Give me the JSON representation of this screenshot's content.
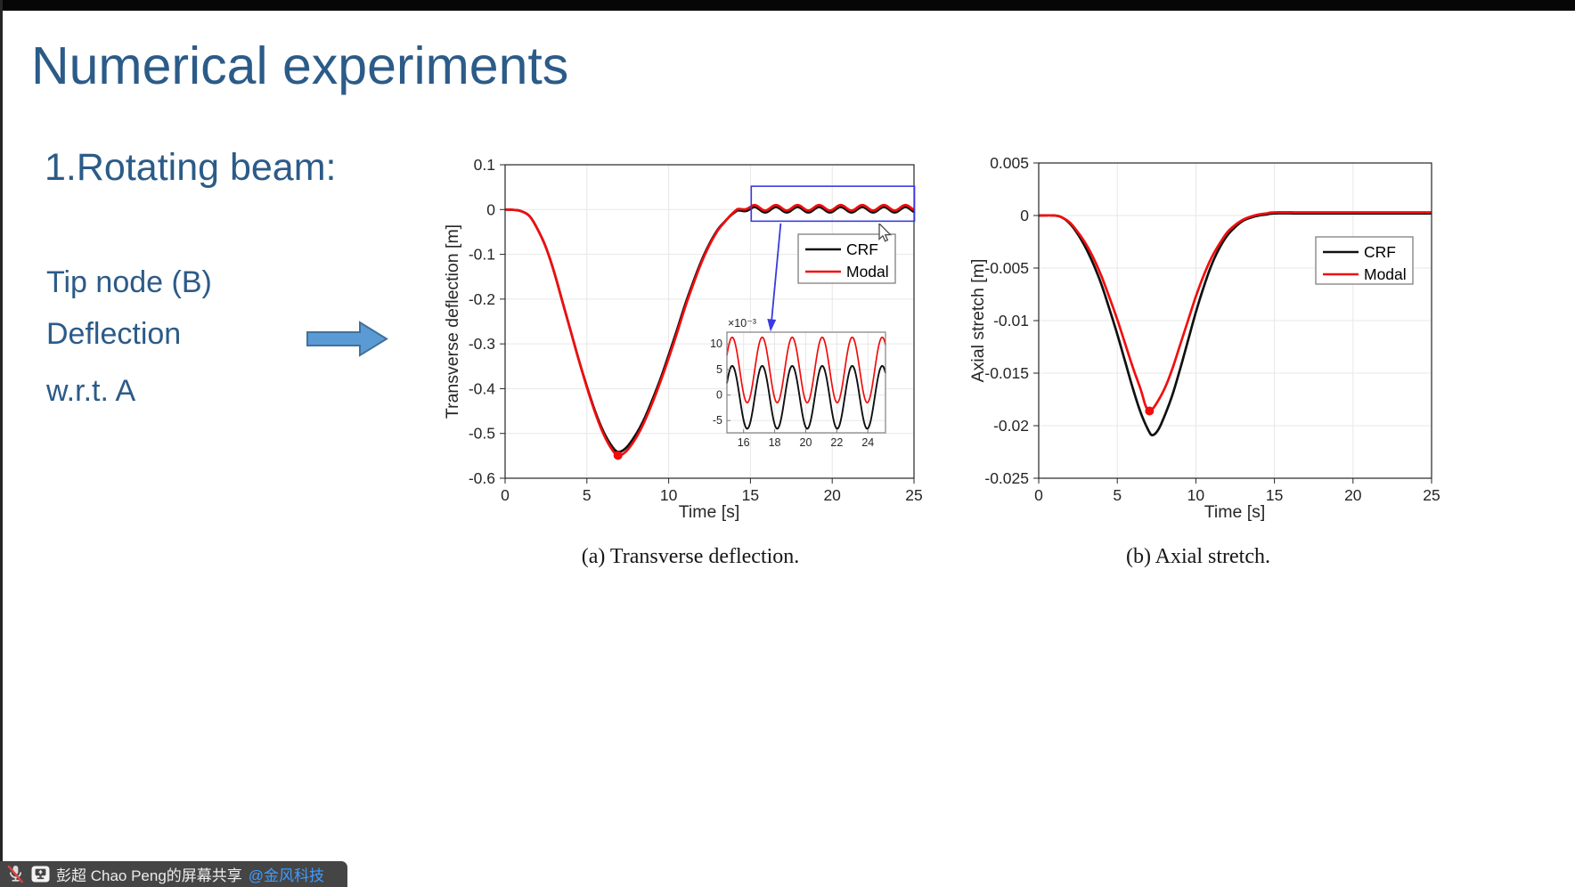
{
  "slide": {
    "title": "Numerical experiments",
    "heading": "1.Rotating beam:",
    "notes": [
      "Tip node (B)",
      "Deflection",
      "w.r.t. A"
    ],
    "text_color": "#2b5b88",
    "arrow_fill": "#5b9bd5",
    "arrow_stroke": "#41719c"
  },
  "captions": {
    "a": "(a) Transverse deflection.",
    "b": "(b) Axial stretch."
  },
  "share_bar": {
    "text": "彭超 Chao Peng的屏幕共享 ",
    "link": "@金风科技",
    "background": "#454545",
    "link_color": "#3f9bff",
    "icons": [
      "microphone-muted",
      "screen-share"
    ]
  },
  "colors": {
    "crf_line": "#101010",
    "modal_line": "#f20d0d",
    "grid": "#e7e7e7",
    "axis": "#262626",
    "annotation_blue": "#3a3ae0",
    "legend_border": "#7f7f7f"
  },
  "chart_data": [
    {
      "id": "transverse-deflection",
      "type": "line",
      "xlabel": "Time [s]",
      "ylabel": "Transverse deflection [m]",
      "xlim": [
        0,
        25
      ],
      "ylim": [
        -0.6,
        0.1
      ],
      "x_tick_labels": [
        "0",
        "5",
        "10",
        "15",
        "20",
        "25"
      ],
      "y_tick_labels": [
        "0.1",
        "0",
        "-0.1",
        "-0.2",
        "-0.3",
        "-0.4",
        "-0.5",
        "-0.6"
      ],
      "grid": true,
      "legend_position": "upper-right-inside",
      "series": [
        {
          "name": "CRF",
          "color": "#101010",
          "width": 2.7,
          "keypoints": [
            [
              0,
              0
            ],
            [
              0.6,
              -0.001
            ],
            [
              1,
              -0.004
            ],
            [
              1.5,
              -0.015
            ],
            [
              2,
              -0.045
            ],
            [
              2.5,
              -0.085
            ],
            [
              3,
              -0.14
            ],
            [
              3.5,
              -0.205
            ],
            [
              4,
              -0.27
            ],
            [
              4.5,
              -0.335
            ],
            [
              5,
              -0.395
            ],
            [
              5.5,
              -0.45
            ],
            [
              6,
              -0.495
            ],
            [
              6.5,
              -0.527
            ],
            [
              6.9,
              -0.541
            ],
            [
              7.4,
              -0.532
            ],
            [
              8,
              -0.502
            ],
            [
              8.5,
              -0.468
            ],
            [
              9,
              -0.425
            ],
            [
              9.5,
              -0.378
            ],
            [
              10,
              -0.325
            ],
            [
              10.5,
              -0.27
            ],
            [
              11,
              -0.213
            ],
            [
              11.5,
              -0.162
            ],
            [
              12,
              -0.115
            ],
            [
              12.5,
              -0.076
            ],
            [
              13,
              -0.045
            ],
            [
              13.4,
              -0.028
            ],
            [
              13.8,
              -0.013
            ],
            [
              14.2,
              -0.002
            ]
          ],
          "oscillation": {
            "start": 14.2,
            "end": 25,
            "mean": -0.0005,
            "amplitude": 0.006,
            "period": 1.32,
            "peak_t": 16.56
          }
        },
        {
          "name": "Modal",
          "color": "#f20d0d",
          "width": 2.7,
          "keypoints": [
            [
              0,
              0
            ],
            [
              0.6,
              -0.001
            ],
            [
              1,
              -0.004
            ],
            [
              1.5,
              -0.015
            ],
            [
              2,
              -0.045
            ],
            [
              2.5,
              -0.085
            ],
            [
              3,
              -0.14
            ],
            [
              3.5,
              -0.205
            ],
            [
              4,
              -0.27
            ],
            [
              4.5,
              -0.335
            ],
            [
              5,
              -0.397
            ],
            [
              5.5,
              -0.453
            ],
            [
              6,
              -0.5
            ],
            [
              6.5,
              -0.534
            ],
            [
              6.9,
              -0.549
            ],
            [
              7.4,
              -0.54
            ],
            [
              8,
              -0.51
            ],
            [
              8.5,
              -0.475
            ],
            [
              9,
              -0.432
            ],
            [
              9.5,
              -0.384
            ],
            [
              10,
              -0.332
            ],
            [
              10.5,
              -0.277
            ],
            [
              11,
              -0.219
            ],
            [
              11.5,
              -0.167
            ],
            [
              12,
              -0.119
            ],
            [
              12.5,
              -0.079
            ],
            [
              13,
              -0.047
            ],
            [
              13.4,
              -0.029
            ],
            [
              13.8,
              -0.012
            ],
            [
              14.2,
              0.001
            ]
          ],
          "oscillation": {
            "start": 14.2,
            "end": 25,
            "mean": 0.004,
            "amplitude": 0.006,
            "period": 1.32,
            "peak_t": 16.56
          },
          "marker": [
            6.9,
            -0.549
          ]
        }
      ],
      "zoom_rect": {
        "t": [
          15.05,
          25.03
        ],
        "v": [
          -0.026,
          0.052
        ]
      },
      "annotation_arrow": {
        "from": [
          16.85,
          -0.031
        ],
        "to": [
          16.3,
          -0.245
        ]
      }
    },
    {
      "id": "axial-stretch",
      "type": "line",
      "xlabel": "Time [s]",
      "ylabel": "Axial stretch [m]",
      "xlim": [
        0,
        25
      ],
      "ylim": [
        -0.025,
        0.005
      ],
      "x_tick_labels": [
        "0",
        "5",
        "10",
        "15",
        "20",
        "25"
      ],
      "y_tick_labels": [
        "0.005",
        "0",
        "-0.005",
        "-0.01",
        "-0.015",
        "-0.02",
        "-0.025"
      ],
      "grid": true,
      "legend_position": "upper-right-inside",
      "series": [
        {
          "name": "CRF",
          "color": "#101010",
          "width": 2.7,
          "keypoints": [
            [
              0,
              0
            ],
            [
              1,
              0
            ],
            [
              1.5,
              -0.0002
            ],
            [
              2,
              -0.0008
            ],
            [
              2.5,
              -0.0018
            ],
            [
              3,
              -0.0031
            ],
            [
              3.5,
              -0.0047
            ],
            [
              4,
              -0.0066
            ],
            [
              4.5,
              -0.0089
            ],
            [
              5,
              -0.0113
            ],
            [
              5.5,
              -0.0139
            ],
            [
              6,
              -0.0165
            ],
            [
              6.5,
              -0.0188
            ],
            [
              7,
              -0.0205
            ],
            [
              7.25,
              -0.0209
            ],
            [
              7.6,
              -0.0204
            ],
            [
              8,
              -0.0191
            ],
            [
              8.5,
              -0.0171
            ],
            [
              9,
              -0.0146
            ],
            [
              9.5,
              -0.0119
            ],
            [
              10,
              -0.0092
            ],
            [
              10.5,
              -0.0068
            ],
            [
              11,
              -0.0047
            ],
            [
              11.5,
              -0.0031
            ],
            [
              12,
              -0.0019
            ],
            [
              12.5,
              -0.0011
            ],
            [
              13,
              -0.0005
            ],
            [
              13.5,
              -0.0002
            ],
            [
              14,
              0
            ],
            [
              14.5,
              0.0001
            ],
            [
              15,
              0.0002
            ],
            [
              17,
              0.0002
            ],
            [
              20,
              0.0002
            ],
            [
              25,
              0.0002
            ]
          ]
        },
        {
          "name": "Modal",
          "color": "#f20d0d",
          "width": 2.7,
          "keypoints": [
            [
              0,
              0
            ],
            [
              1,
              0
            ],
            [
              1.5,
              -0.0002
            ],
            [
              2,
              -0.0007
            ],
            [
              2.5,
              -0.0016
            ],
            [
              3,
              -0.0027
            ],
            [
              3.5,
              -0.0041
            ],
            [
              4,
              -0.0058
            ],
            [
              4.5,
              -0.0078
            ],
            [
              5,
              -0.0099
            ],
            [
              5.5,
              -0.0122
            ],
            [
              6,
              -0.0145
            ],
            [
              6.5,
              -0.0166
            ],
            [
              6.8,
              -0.0181
            ],
            [
              7.05,
              -0.0186
            ],
            [
              7.4,
              -0.0181
            ],
            [
              8,
              -0.0165
            ],
            [
              8.5,
              -0.0146
            ],
            [
              9,
              -0.0123
            ],
            [
              9.5,
              -0.01
            ],
            [
              10,
              -0.0077
            ],
            [
              10.5,
              -0.0057
            ],
            [
              11,
              -0.004
            ],
            [
              11.5,
              -0.0027
            ],
            [
              12,
              -0.0016
            ],
            [
              12.5,
              -0.0009
            ],
            [
              13,
              -0.0004
            ],
            [
              13.5,
              -0.0001
            ],
            [
              14,
              0.0001
            ],
            [
              14.5,
              0.0002
            ],
            [
              15,
              0.0003
            ],
            [
              17,
              0.0003
            ],
            [
              20,
              0.0003
            ],
            [
              25,
              0.0003
            ]
          ],
          "marker": [
            7.05,
            -0.0186
          ]
        }
      ]
    },
    {
      "id": "deflection-inset",
      "type": "line",
      "scale_label": "×10⁻³",
      "xlim": [
        14.93,
        25.13
      ],
      "ylim": [
        -7.4,
        12.3
      ],
      "x_tick_labels": [
        "16",
        "18",
        "20",
        "22",
        "24"
      ],
      "y_tick_labels": [
        "10",
        "5",
        "0",
        "-5"
      ],
      "grid": true,
      "series": [
        {
          "name": "CRF",
          "color": "#101010",
          "width": 1.9,
          "oscillation": {
            "start": 14.93,
            "end": 25.13,
            "mean": -0.45,
            "amplitude": 6.15,
            "period": 1.93,
            "peak_t": 15.27
          }
        },
        {
          "name": "Modal",
          "color": "#f20d0d",
          "width": 1.7,
          "oscillation": {
            "start": 14.93,
            "end": 25.13,
            "mean": 4.9,
            "amplitude": 6.4,
            "period": 1.93,
            "peak_t": 15.27
          }
        }
      ]
    }
  ]
}
